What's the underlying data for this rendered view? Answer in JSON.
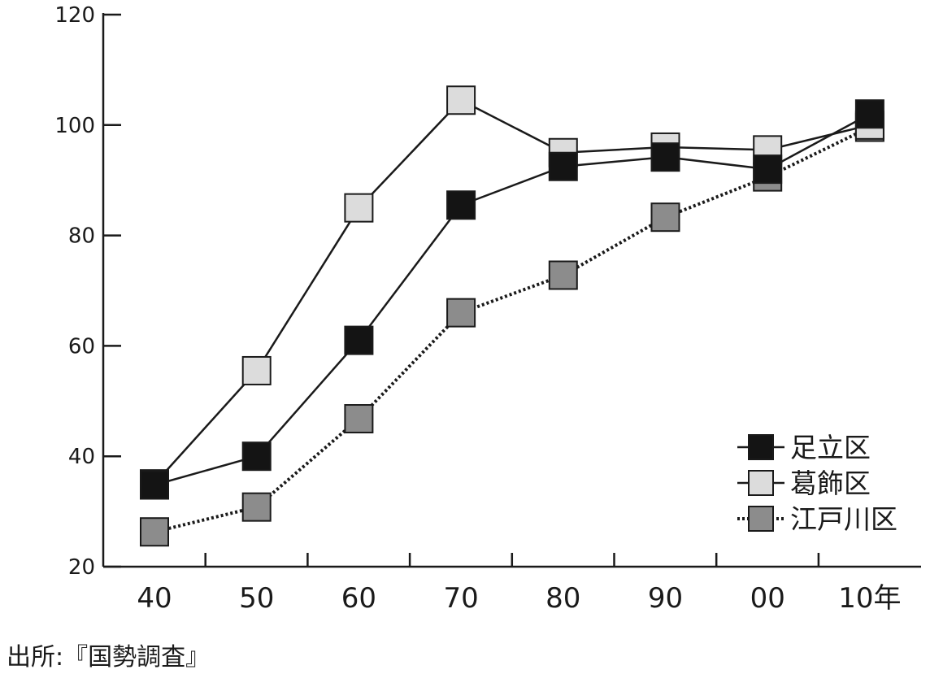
{
  "chart_data": {
    "type": "line",
    "categories": [
      "40",
      "50",
      "60",
      "70",
      "80",
      "90",
      "00",
      "10年"
    ],
    "ylim": [
      20,
      120
    ],
    "yticks": [
      20,
      40,
      60,
      80,
      100,
      120
    ],
    "grid": false,
    "legend_position": "bottom-right",
    "series": [
      {
        "name": "江戸川区",
        "values": [
          26.3,
          30.8,
          46.8,
          66.0,
          72.8,
          83.3,
          90.6,
          99.6
        ],
        "fill": "#8c8c8c",
        "line_style": "dotted"
      },
      {
        "name": "葛飾区",
        "values": [
          35.0,
          55.5,
          85.0,
          104.5,
          95.0,
          96.0,
          95.5,
          100.0
        ],
        "fill": "#dcdcdc",
        "line_style": "solid"
      },
      {
        "name": "足立区",
        "values": [
          34.8,
          40.0,
          61.0,
          85.5,
          92.5,
          94.2,
          92.0,
          102.0
        ],
        "fill": "#141414",
        "line_style": "solid"
      }
    ],
    "legend_order": [
      "足立区",
      "葛飾区",
      "江戸川区"
    ]
  },
  "source": "出所:『国勢調査』"
}
